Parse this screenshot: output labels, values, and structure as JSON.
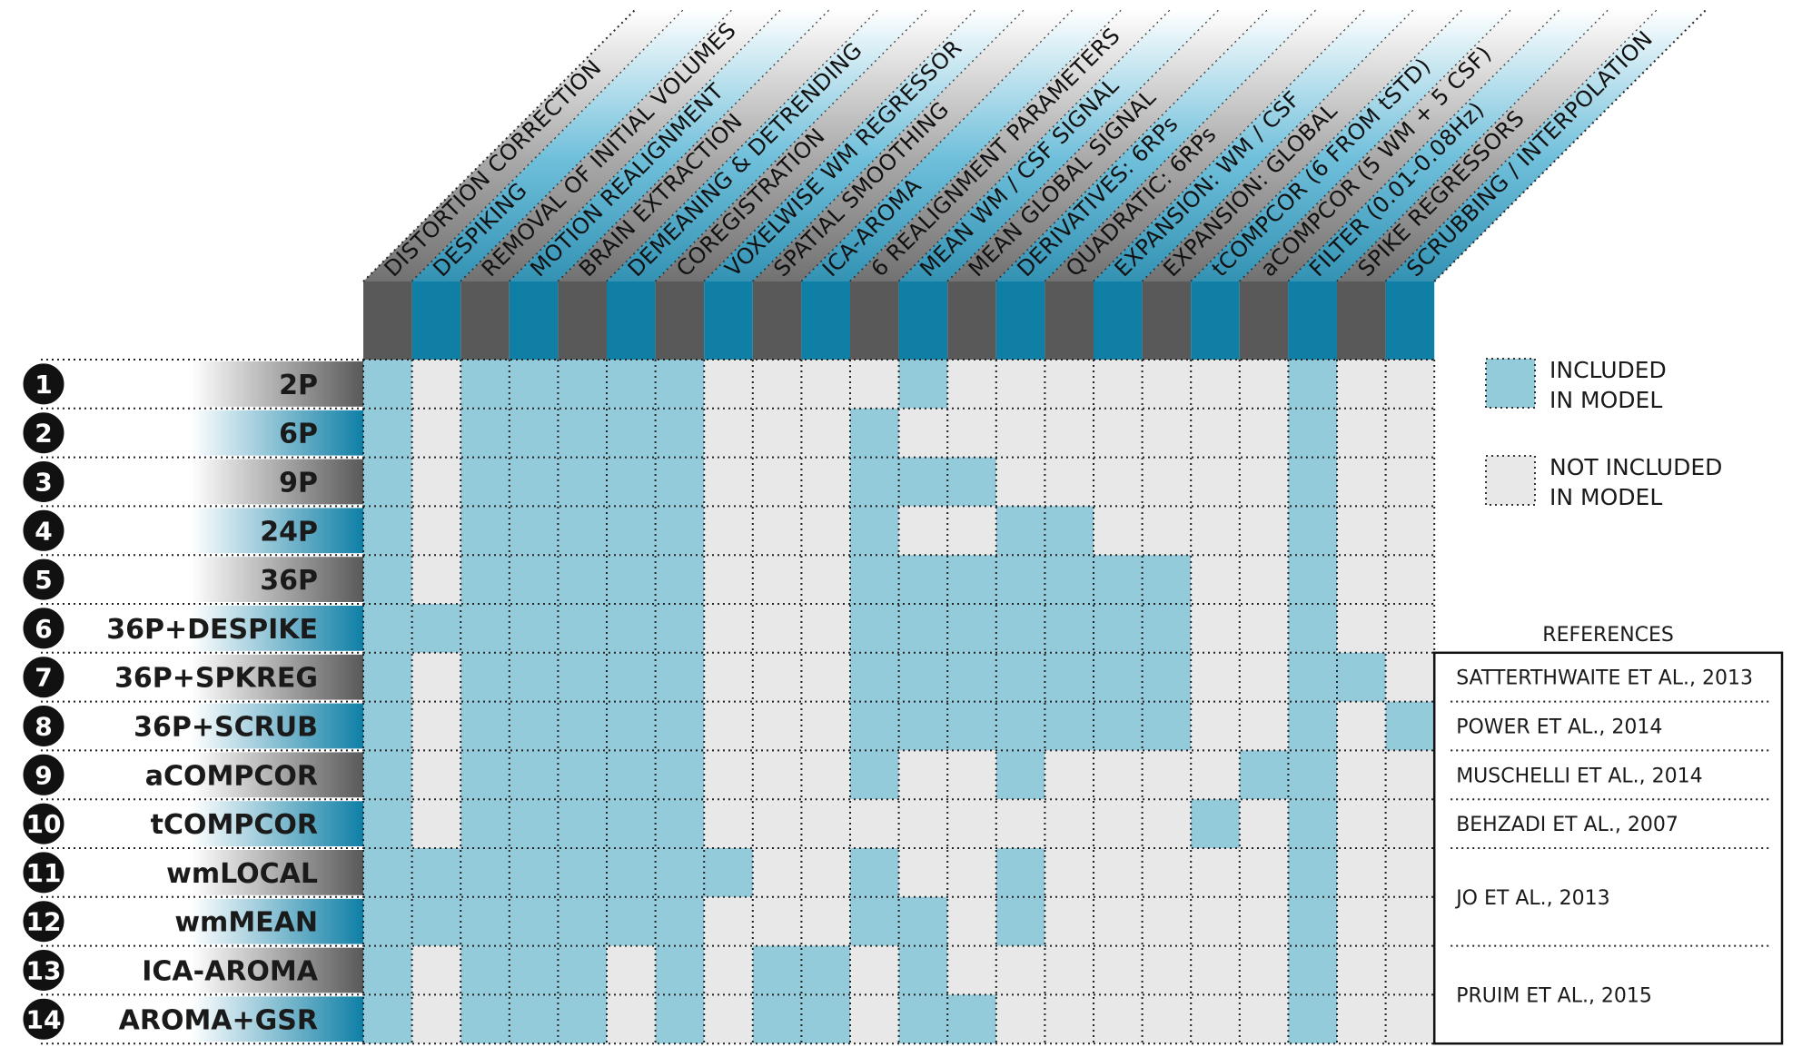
{
  "columns": [
    "DISTORTION CORRECTION",
    "DESPIKING",
    "REMOVAL OF INITIAL VOLUMES",
    "MOTION REALIGNMENT",
    "BRAIN EXTRACTION",
    "DEMEANING & DETRENDING",
    "COREGISTRATION",
    "VOXELWISE WM REGRESSOR",
    "SPATIAL SMOOTHING",
    "ICA-AROMA",
    "6 REALIGNMENT PARAMETERS",
    "MEAN WM / CSF SIGNAL",
    "MEAN GLOBAL SIGNAL",
    "DERIVATIVES: 6RPs",
    "QUADRATIC: 6RPs",
    "EXPANSION: WM / CSF",
    "EXPANSION: GLOBAL",
    "tCOMPCOR (6 FROM tSTD)",
    "aCOMPCOR (5 WM + 5 CSF)",
    "FILTER (0.01-0.08Hz)",
    "SPIKE REGRESSORS",
    "SCRUBBING / INTERPOLATION"
  ],
  "rows": [
    {
      "num": "1",
      "label": "2P",
      "cells": [
        1,
        0,
        1,
        1,
        1,
        1,
        1,
        0,
        0,
        0,
        0,
        1,
        0,
        0,
        0,
        0,
        0,
        0,
        0,
        1,
        0,
        0
      ]
    },
    {
      "num": "2",
      "label": "6P",
      "cells": [
        1,
        0,
        1,
        1,
        1,
        1,
        1,
        0,
        0,
        0,
        1,
        0,
        0,
        0,
        0,
        0,
        0,
        0,
        0,
        1,
        0,
        0
      ]
    },
    {
      "num": "3",
      "label": "9P",
      "cells": [
        1,
        0,
        1,
        1,
        1,
        1,
        1,
        0,
        0,
        0,
        1,
        1,
        1,
        0,
        0,
        0,
        0,
        0,
        0,
        1,
        0,
        0
      ]
    },
    {
      "num": "4",
      "label": "24P",
      "cells": [
        1,
        0,
        1,
        1,
        1,
        1,
        1,
        0,
        0,
        0,
        1,
        0,
        0,
        1,
        1,
        0,
        0,
        0,
        0,
        1,
        0,
        0
      ]
    },
    {
      "num": "5",
      "label": "36P",
      "cells": [
        1,
        0,
        1,
        1,
        1,
        1,
        1,
        0,
        0,
        0,
        1,
        1,
        1,
        1,
        1,
        1,
        1,
        0,
        0,
        1,
        0,
        0
      ]
    },
    {
      "num": "6",
      "label": "36P+DESPIKE",
      "cells": [
        1,
        1,
        1,
        1,
        1,
        1,
        1,
        0,
        0,
        0,
        1,
        1,
        1,
        1,
        1,
        1,
        1,
        0,
        0,
        1,
        0,
        0
      ]
    },
    {
      "num": "7",
      "label": "36P+SPKREG",
      "cells": [
        1,
        0,
        1,
        1,
        1,
        1,
        1,
        0,
        0,
        0,
        1,
        1,
        1,
        1,
        1,
        1,
        1,
        0,
        0,
        1,
        1,
        0
      ]
    },
    {
      "num": "8",
      "label": "36P+SCRUB",
      "cells": [
        1,
        0,
        1,
        1,
        1,
        1,
        1,
        0,
        0,
        0,
        1,
        1,
        1,
        1,
        1,
        1,
        1,
        0,
        0,
        1,
        0,
        1
      ]
    },
    {
      "num": "9",
      "label": "aCOMPCOR",
      "cells": [
        1,
        0,
        1,
        1,
        1,
        1,
        1,
        0,
        0,
        0,
        1,
        0,
        0,
        1,
        0,
        0,
        0,
        0,
        1,
        1,
        0,
        0
      ]
    },
    {
      "num": "10",
      "label": "tCOMPCOR",
      "cells": [
        1,
        0,
        1,
        1,
        1,
        1,
        1,
        0,
        0,
        0,
        0,
        0,
        0,
        0,
        0,
        0,
        0,
        1,
        0,
        1,
        0,
        0
      ]
    },
    {
      "num": "11",
      "label": "wmLOCAL",
      "cells": [
        1,
        1,
        1,
        1,
        1,
        1,
        1,
        1,
        0,
        0,
        1,
        0,
        0,
        1,
        0,
        0,
        0,
        0,
        0,
        1,
        0,
        0
      ]
    },
    {
      "num": "12",
      "label": "wmMEAN",
      "cells": [
        1,
        1,
        1,
        1,
        1,
        1,
        1,
        0,
        0,
        0,
        1,
        1,
        0,
        1,
        0,
        0,
        0,
        0,
        0,
        1,
        0,
        0
      ]
    },
    {
      "num": "13",
      "label": "ICA-AROMA",
      "cells": [
        1,
        0,
        1,
        1,
        1,
        0,
        1,
        0,
        1,
        1,
        0,
        1,
        0,
        0,
        0,
        0,
        0,
        0,
        0,
        1,
        0,
        0
      ]
    },
    {
      "num": "14",
      "label": "AROMA+GSR",
      "cells": [
        1,
        0,
        1,
        1,
        1,
        0,
        1,
        0,
        1,
        1,
        0,
        1,
        1,
        0,
        0,
        0,
        0,
        0,
        0,
        1,
        0,
        0
      ]
    }
  ],
  "legend": {
    "included_line1": "INCLUDED",
    "included_line2": "IN MODEL",
    "not_included_line1": "NOT INCLUDED",
    "not_included_line2": "IN MODEL"
  },
  "references": {
    "title": "REFERENCES",
    "items": [
      {
        "text": "SATTERTHWAITE ET AL., 2013",
        "rows": [
          7
        ]
      },
      {
        "text": "POWER ET AL., 2014",
        "rows": [
          8
        ]
      },
      {
        "text": "MUSCHELLI ET AL., 2014",
        "rows": [
          9
        ]
      },
      {
        "text": "BEHZADI ET AL., 2007",
        "rows": [
          10
        ]
      },
      {
        "text": "JO ET AL., 2013",
        "rows": [
          11,
          12
        ]
      },
      {
        "text": "PRUIM ET AL., 2015",
        "rows": [
          13,
          14
        ]
      }
    ]
  },
  "colors": {
    "included": "#94cbdb",
    "not_included": "#e8e8e8",
    "blue_dark": "#0f7fa6",
    "gray_dark": "#595959"
  }
}
